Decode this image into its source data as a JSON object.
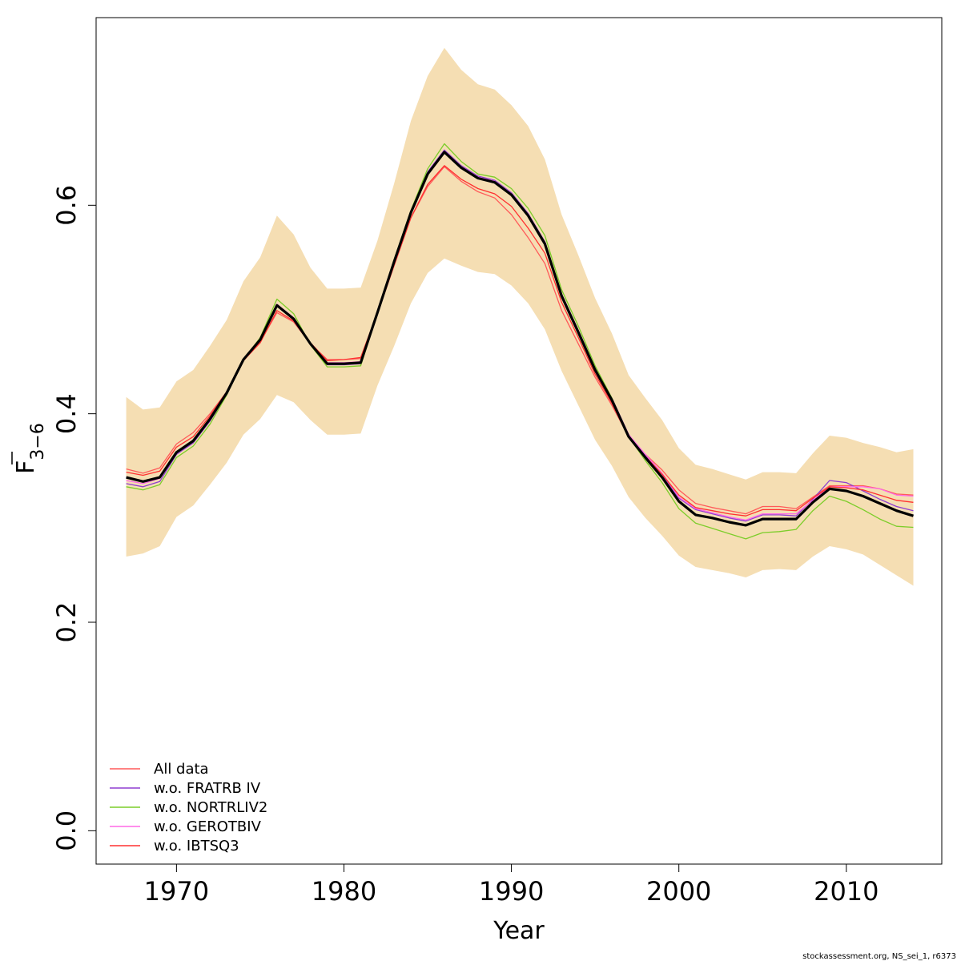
{
  "chart_data": {
    "type": "line",
    "xlabel": "Year",
    "ylabel_base": "F",
    "ylabel_sub": "3−6",
    "xlim": [
      1965.2,
      2015.7
    ],
    "ylim": [
      -0.032,
      0.78
    ],
    "x_ticks": [
      1970,
      1980,
      1990,
      2000,
      2010
    ],
    "x_tick_labels": [
      "1970",
      "1980",
      "1990",
      "2000",
      "2010"
    ],
    "y_ticks": [
      0.0,
      0.2,
      0.4,
      0.6
    ],
    "y_tick_labels": [
      "0.0",
      "0.2",
      "0.4",
      "0.6"
    ],
    "x": [
      1967,
      1968,
      1969,
      1970,
      1971,
      1972,
      1973,
      1974,
      1975,
      1976,
      1977,
      1978,
      1979,
      1980,
      1981,
      1982,
      1983,
      1984,
      1985,
      1986,
      1987,
      1988,
      1989,
      1990,
      1991,
      1992,
      1993,
      1994,
      1995,
      1996,
      1997,
      1998,
      1999,
      2000,
      2001,
      2002,
      2003,
      2004,
      2005,
      2006,
      2007,
      2008,
      2009,
      2010,
      2011,
      2012,
      2013,
      2014
    ],
    "confidence_band": {
      "color": "#f5deb3",
      "upper": [
        0.416,
        0.404,
        0.406,
        0.431,
        0.442,
        0.465,
        0.49,
        0.527,
        0.55,
        0.59,
        0.572,
        0.54,
        0.52,
        0.52,
        0.521,
        0.566,
        0.621,
        0.681,
        0.724,
        0.751,
        0.73,
        0.716,
        0.711,
        0.696,
        0.676,
        0.644,
        0.591,
        0.552,
        0.511,
        0.477,
        0.437,
        0.415,
        0.394,
        0.367,
        0.351,
        0.347,
        0.342,
        0.337,
        0.344,
        0.344,
        0.343,
        0.362,
        0.379,
        0.377,
        0.372,
        0.368,
        0.363,
        0.366
      ],
      "lower": [
        0.263,
        0.266,
        0.273,
        0.301,
        0.312,
        0.332,
        0.353,
        0.38,
        0.395,
        0.418,
        0.411,
        0.394,
        0.38,
        0.38,
        0.381,
        0.427,
        0.465,
        0.506,
        0.535,
        0.549,
        0.542,
        0.536,
        0.534,
        0.523,
        0.506,
        0.481,
        0.441,
        0.408,
        0.375,
        0.35,
        0.32,
        0.3,
        0.283,
        0.264,
        0.253,
        0.25,
        0.247,
        0.243,
        0.25,
        0.251,
        0.25,
        0.263,
        0.273,
        0.27,
        0.265,
        0.255,
        0.245,
        0.235
      ]
    },
    "series": [
      {
        "key": "main",
        "color": "#000000",
        "width": 3.2,
        "values": [
          0.339,
          0.335,
          0.339,
          0.363,
          0.374,
          0.395,
          0.42,
          0.452,
          0.471,
          0.504,
          0.491,
          0.467,
          0.448,
          0.448,
          0.449,
          0.497,
          0.546,
          0.593,
          0.63,
          0.651,
          0.636,
          0.626,
          0.622,
          0.61,
          0.59,
          0.563,
          0.513,
          0.478,
          0.442,
          0.413,
          0.378,
          0.358,
          0.339,
          0.316,
          0.303,
          0.3,
          0.296,
          0.293,
          0.299,
          0.299,
          0.299,
          0.315,
          0.328,
          0.326,
          0.321,
          0.314,
          0.307,
          0.302
        ]
      },
      {
        "name": "All data",
        "color": "#ff5a5a",
        "width": 1.3,
        "values": [
          0.347,
          0.343,
          0.348,
          0.371,
          0.382,
          0.4,
          0.421,
          0.451,
          0.469,
          0.497,
          0.488,
          0.467,
          0.452,
          0.452,
          0.453,
          0.496,
          0.542,
          0.588,
          0.618,
          0.637,
          0.623,
          0.613,
          0.607,
          0.591,
          0.569,
          0.544,
          0.499,
          0.467,
          0.435,
          0.408,
          0.378,
          0.361,
          0.346,
          0.327,
          0.314,
          0.31,
          0.307,
          0.304,
          0.311,
          0.311,
          0.309,
          0.32,
          0.331,
          0.331,
          0.331,
          0.328,
          0.323,
          0.322
        ]
      },
      {
        "name": "w.o. FRATRB IV",
        "color": "#8f3ed0",
        "width": 1.3,
        "values": [
          0.333,
          0.33,
          0.335,
          0.361,
          0.372,
          0.393,
          0.418,
          0.452,
          0.471,
          0.505,
          0.492,
          0.467,
          0.447,
          0.447,
          0.448,
          0.497,
          0.547,
          0.594,
          0.632,
          0.653,
          0.638,
          0.628,
          0.624,
          0.612,
          0.592,
          0.565,
          0.515,
          0.48,
          0.444,
          0.415,
          0.38,
          0.36,
          0.342,
          0.319,
          0.308,
          0.304,
          0.3,
          0.297,
          0.303,
          0.303,
          0.302,
          0.318,
          0.336,
          0.334,
          0.326,
          0.318,
          0.311,
          0.307
        ]
      },
      {
        "name": "w.o. NORTRLIV2",
        "color": "#7ccd2a",
        "width": 1.3,
        "values": [
          0.33,
          0.327,
          0.332,
          0.358,
          0.369,
          0.39,
          0.418,
          0.452,
          0.473,
          0.51,
          0.496,
          0.466,
          0.445,
          0.445,
          0.446,
          0.497,
          0.548,
          0.595,
          0.635,
          0.659,
          0.642,
          0.63,
          0.627,
          0.616,
          0.597,
          0.571,
          0.519,
          0.484,
          0.446,
          0.415,
          0.378,
          0.355,
          0.334,
          0.309,
          0.295,
          0.29,
          0.285,
          0.28,
          0.286,
          0.287,
          0.289,
          0.307,
          0.321,
          0.316,
          0.308,
          0.299,
          0.292,
          0.291
        ]
      },
      {
        "name": "w.o. GEROTBIV",
        "color": "#ff69e6",
        "width": 1.3,
        "values": [
          0.336,
          0.333,
          0.338,
          0.363,
          0.374,
          0.395,
          0.42,
          0.452,
          0.471,
          0.505,
          0.492,
          0.467,
          0.449,
          0.449,
          0.45,
          0.497,
          0.546,
          0.593,
          0.63,
          0.652,
          0.637,
          0.627,
          0.623,
          0.611,
          0.591,
          0.564,
          0.514,
          0.479,
          0.443,
          0.414,
          0.38,
          0.361,
          0.343,
          0.32,
          0.309,
          0.305,
          0.301,
          0.298,
          0.304,
          0.304,
          0.304,
          0.317,
          0.33,
          0.33,
          0.33,
          0.328,
          0.322,
          0.321
        ]
      },
      {
        "name": "w.o. IBTSQ3",
        "color": "#ff3030",
        "width": 1.3,
        "values": [
          0.344,
          0.341,
          0.345,
          0.368,
          0.378,
          0.398,
          0.421,
          0.451,
          0.468,
          0.499,
          0.489,
          0.468,
          0.451,
          0.452,
          0.454,
          0.497,
          0.543,
          0.588,
          0.62,
          0.638,
          0.625,
          0.616,
          0.611,
          0.599,
          0.578,
          0.554,
          0.507,
          0.473,
          0.438,
          0.41,
          0.378,
          0.359,
          0.342,
          0.322,
          0.31,
          0.307,
          0.304,
          0.302,
          0.308,
          0.308,
          0.307,
          0.319,
          0.33,
          0.329,
          0.327,
          0.322,
          0.317,
          0.315
        ]
      }
    ]
  },
  "footer": "stockassessment.org, NS_sei_1, r6373"
}
